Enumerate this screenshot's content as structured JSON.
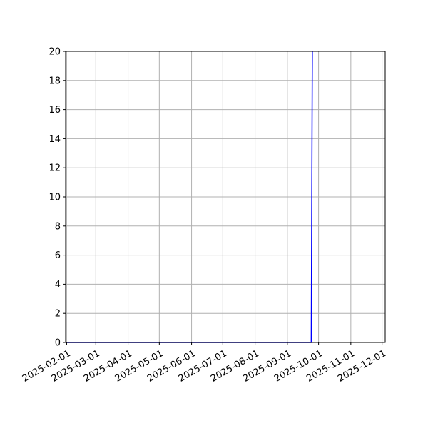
{
  "chart_data": {
    "type": "line",
    "title": "",
    "xlabel": "",
    "ylabel": "",
    "x_ticks": [
      "2025-02-01",
      "2025-03-01",
      "2025-04-01",
      "2025-05-01",
      "2025-06-01",
      "2025-07-01",
      "2025-08-01",
      "2025-09-01",
      "2025-10-01",
      "2025-11-01",
      "2025-12-01"
    ],
    "y_ticks": [
      "0",
      "2",
      "4",
      "6",
      "8",
      "10",
      "12",
      "14",
      "16",
      "18",
      "20"
    ],
    "xlim": [
      "2025-01-31",
      "2025-12-04"
    ],
    "ylim": [
      0,
      20
    ],
    "grid": true,
    "series": [
      {
        "color": "#0000ff",
        "x": [
          "2025-01-31",
          "2025-09-24",
          "2025-09-25"
        ],
        "y": [
          0,
          0,
          20
        ]
      }
    ]
  }
}
